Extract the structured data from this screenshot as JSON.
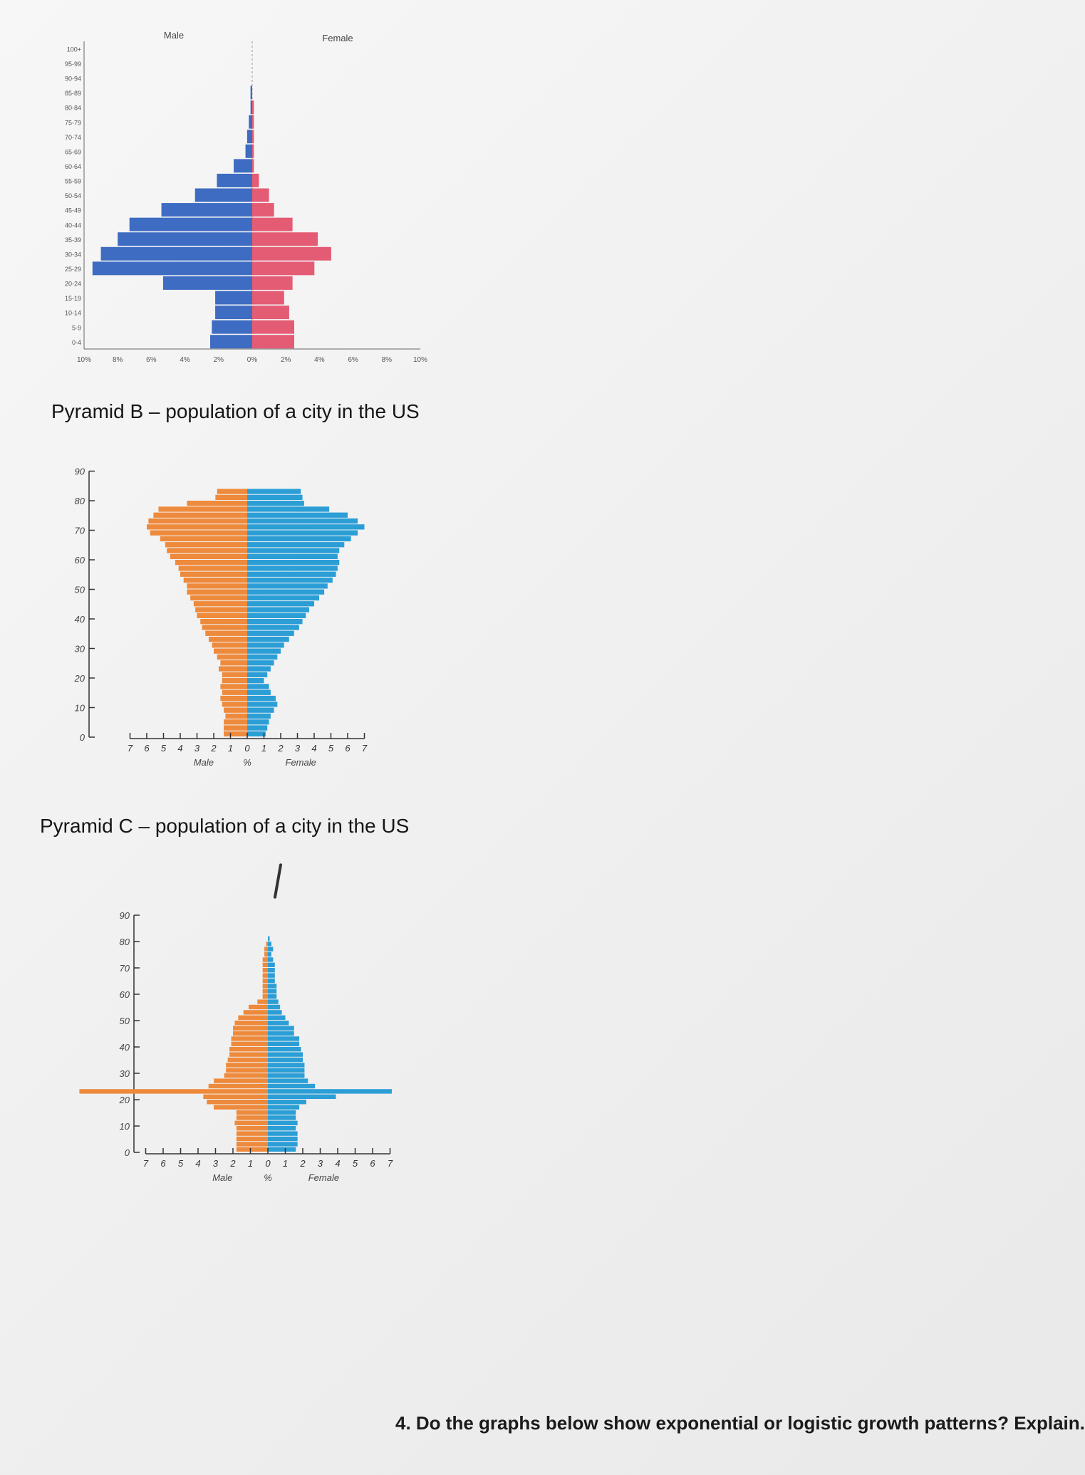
{
  "charts": {
    "a": {
      "legend_male": "Male",
      "legend_female": "Female"
    },
    "b": {
      "heading": "Pyramid B – population of a city in the US",
      "xlabel_left": "Male",
      "xlabel_center": "%",
      "xlabel_right": "Female"
    },
    "c": {
      "heading": "Pyramid C – population of a city in the US",
      "xlabel_left": "Male",
      "xlabel_center": "%",
      "xlabel_right": "Female"
    }
  },
  "question": "4. Do the graphs below show exponential or logistic growth patterns? Explain.",
  "colors": {
    "a_male": "#3d6cc2",
    "a_female": "#e45c74",
    "bc_male": "#ee8a3c",
    "bc_female": "#2c9ed6"
  },
  "chart_data": [
    {
      "type": "bar",
      "orientation": "horizontal-pyramid",
      "title": "",
      "categories": [
        "0-4",
        "5-9",
        "10-14",
        "15-19",
        "20-24",
        "25-29",
        "30-34",
        "35-39",
        "40-44",
        "45-49",
        "50-54",
        "55-59",
        "60-64",
        "65-69",
        "70-74",
        "75-79",
        "80-84",
        "85-89",
        "90-94",
        "95-99",
        "100+"
      ],
      "series": [
        {
          "name": "Male",
          "values": [
            2.5,
            2.4,
            2.2,
            2.2,
            5.3,
            9.5,
            9.0,
            8.0,
            7.3,
            5.4,
            3.4,
            2.1,
            1.1,
            0.4,
            0.3,
            0.2,
            0.1,
            0.1,
            0.0,
            0.0,
            0.0
          ]
        },
        {
          "name": "Female",
          "values": [
            2.5,
            2.5,
            2.2,
            1.9,
            2.4,
            3.7,
            4.7,
            3.9,
            2.4,
            1.3,
            1.0,
            0.4,
            0.1,
            0.1,
            0.1,
            0.1,
            0.1,
            0.0,
            0.0,
            0.0,
            0.0
          ]
        }
      ],
      "x_ticks": [
        "10%",
        "8%",
        "6%",
        "4%",
        "2%",
        "0%",
        "2%",
        "4%",
        "6%",
        "8%",
        "10%"
      ],
      "xlim": [
        -10,
        10
      ]
    },
    {
      "type": "bar",
      "orientation": "horizontal-pyramid",
      "title": "Pyramid B – population of a city in the US",
      "age_ticks": [
        "0",
        "10",
        "20",
        "30",
        "40",
        "50",
        "60",
        "70",
        "80",
        "90"
      ],
      "x_ticks": [
        "7",
        "6",
        "5",
        "4",
        "3",
        "2",
        "1",
        "0",
        "1",
        "2",
        "3",
        "4",
        "5",
        "6",
        "7"
      ],
      "xlabel": "Male   %   Female",
      "xlim": [
        -7,
        7
      ],
      "ylim": [
        0,
        90
      ],
      "band_height": 2,
      "series": [
        {
          "name": "Male",
          "values": [
            1.4,
            1.4,
            1.4,
            1.3,
            1.4,
            1.5,
            1.6,
            1.5,
            1.6,
            1.5,
            1.5,
            1.7,
            1.6,
            1.8,
            2.0,
            2.1,
            2.3,
            2.5,
            2.7,
            2.8,
            3.0,
            3.1,
            3.2,
            3.4,
            3.6,
            3.6,
            3.8,
            4.0,
            4.1,
            4.3,
            4.6,
            4.8,
            4.9,
            5.2,
            5.8,
            6.0,
            5.9,
            5.6,
            5.3,
            3.6,
            1.9,
            1.8
          ]
        },
        {
          "name": "Female",
          "values": [
            1.1,
            1.2,
            1.3,
            1.4,
            1.6,
            1.8,
            1.7,
            1.4,
            1.3,
            1.0,
            1.2,
            1.4,
            1.6,
            1.8,
            2.0,
            2.2,
            2.5,
            2.8,
            3.1,
            3.3,
            3.5,
            3.7,
            4.0,
            4.3,
            4.6,
            4.8,
            5.1,
            5.3,
            5.4,
            5.5,
            5.4,
            5.5,
            5.8,
            6.2,
            6.6,
            7.0,
            6.6,
            6.0,
            4.9,
            3.4,
            3.3,
            3.2
          ]
        }
      ]
    },
    {
      "type": "bar",
      "orientation": "horizontal-pyramid",
      "title": "Pyramid C – population of a city in the US",
      "age_ticks": [
        "0",
        "10",
        "20",
        "30",
        "40",
        "50",
        "60",
        "70",
        "80",
        "90"
      ],
      "x_ticks": [
        "7",
        "6",
        "5",
        "4",
        "3",
        "2",
        "1",
        "0",
        "1",
        "2",
        "3",
        "4",
        "5",
        "6",
        "7"
      ],
      "xlabel": "Male   %   Female",
      "xlim": [
        -7,
        7
      ],
      "ylim": [
        0,
        90
      ],
      "band_height": 2,
      "series": [
        {
          "name": "Male",
          "values": [
            1.8,
            1.8,
            1.8,
            1.8,
            1.8,
            1.9,
            1.8,
            1.8,
            3.1,
            3.5,
            3.7,
            10.8,
            3.4,
            3.1,
            2.5,
            2.4,
            2.4,
            2.3,
            2.2,
            2.2,
            2.1,
            2.1,
            2.0,
            2.0,
            1.9,
            1.7,
            1.4,
            1.1,
            0.6,
            0.3,
            0.3,
            0.3,
            0.3,
            0.3,
            0.3,
            0.3,
            0.3,
            0.2,
            0.2,
            0.1,
            0.0,
            0.0
          ]
        },
        {
          "name": "Female",
          "values": [
            1.6,
            1.7,
            1.7,
            1.7,
            1.6,
            1.7,
            1.6,
            1.6,
            1.8,
            2.2,
            3.9,
            7.1,
            2.7,
            2.3,
            2.1,
            2.1,
            2.1,
            2.0,
            2.0,
            1.9,
            1.8,
            1.8,
            1.5,
            1.5,
            1.2,
            1.0,
            0.8,
            0.7,
            0.6,
            0.5,
            0.5,
            0.5,
            0.4,
            0.4,
            0.4,
            0.4,
            0.3,
            0.2,
            0.3,
            0.2,
            0.1,
            0.0
          ]
        }
      ]
    }
  ]
}
